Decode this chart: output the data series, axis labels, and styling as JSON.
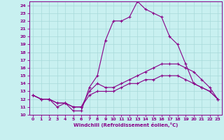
{
  "xlabel": "Windchill (Refroidissement éolien,°C)",
  "background_color": "#c8f0f0",
  "line_color": "#880088",
  "grid_color": "#a8dada",
  "x_values": [
    0,
    1,
    2,
    3,
    4,
    5,
    6,
    7,
    8,
    9,
    10,
    11,
    12,
    13,
    14,
    15,
    16,
    17,
    18,
    19,
    20,
    21,
    22,
    23
  ],
  "ylim": [
    10,
    24.5
  ],
  "xlim": [
    -0.5,
    23.5
  ],
  "yticks": [
    10,
    11,
    12,
    13,
    14,
    15,
    16,
    17,
    18,
    19,
    20,
    21,
    22,
    23,
    24
  ],
  "xticks": [
    0,
    1,
    2,
    3,
    4,
    5,
    6,
    7,
    8,
    9,
    10,
    11,
    12,
    13,
    14,
    15,
    16,
    17,
    18,
    19,
    20,
    21,
    22,
    23
  ],
  "series1": [
    12.5,
    12.0,
    12.0,
    11.0,
    11.5,
    10.5,
    10.5,
    13.5,
    15.0,
    19.5,
    22.0,
    22.0,
    22.5,
    24.5,
    23.5,
    23.0,
    22.5,
    20.0,
    19.0,
    16.5,
    14.0,
    13.5,
    13.0,
    12.0
  ],
  "series2": [
    12.5,
    12.0,
    12.0,
    11.5,
    11.5,
    11.0,
    11.0,
    13.0,
    14.0,
    13.5,
    13.5,
    14.0,
    14.5,
    15.0,
    15.5,
    16.0,
    16.5,
    16.5,
    16.5,
    16.0,
    15.5,
    14.5,
    13.5,
    12.0
  ],
  "series3": [
    12.5,
    12.0,
    12.0,
    11.5,
    11.5,
    11.0,
    11.0,
    12.5,
    13.0,
    13.0,
    13.0,
    13.5,
    14.0,
    14.0,
    14.5,
    14.5,
    15.0,
    15.0,
    15.0,
    14.5,
    14.0,
    13.5,
    13.0,
    12.0
  ]
}
